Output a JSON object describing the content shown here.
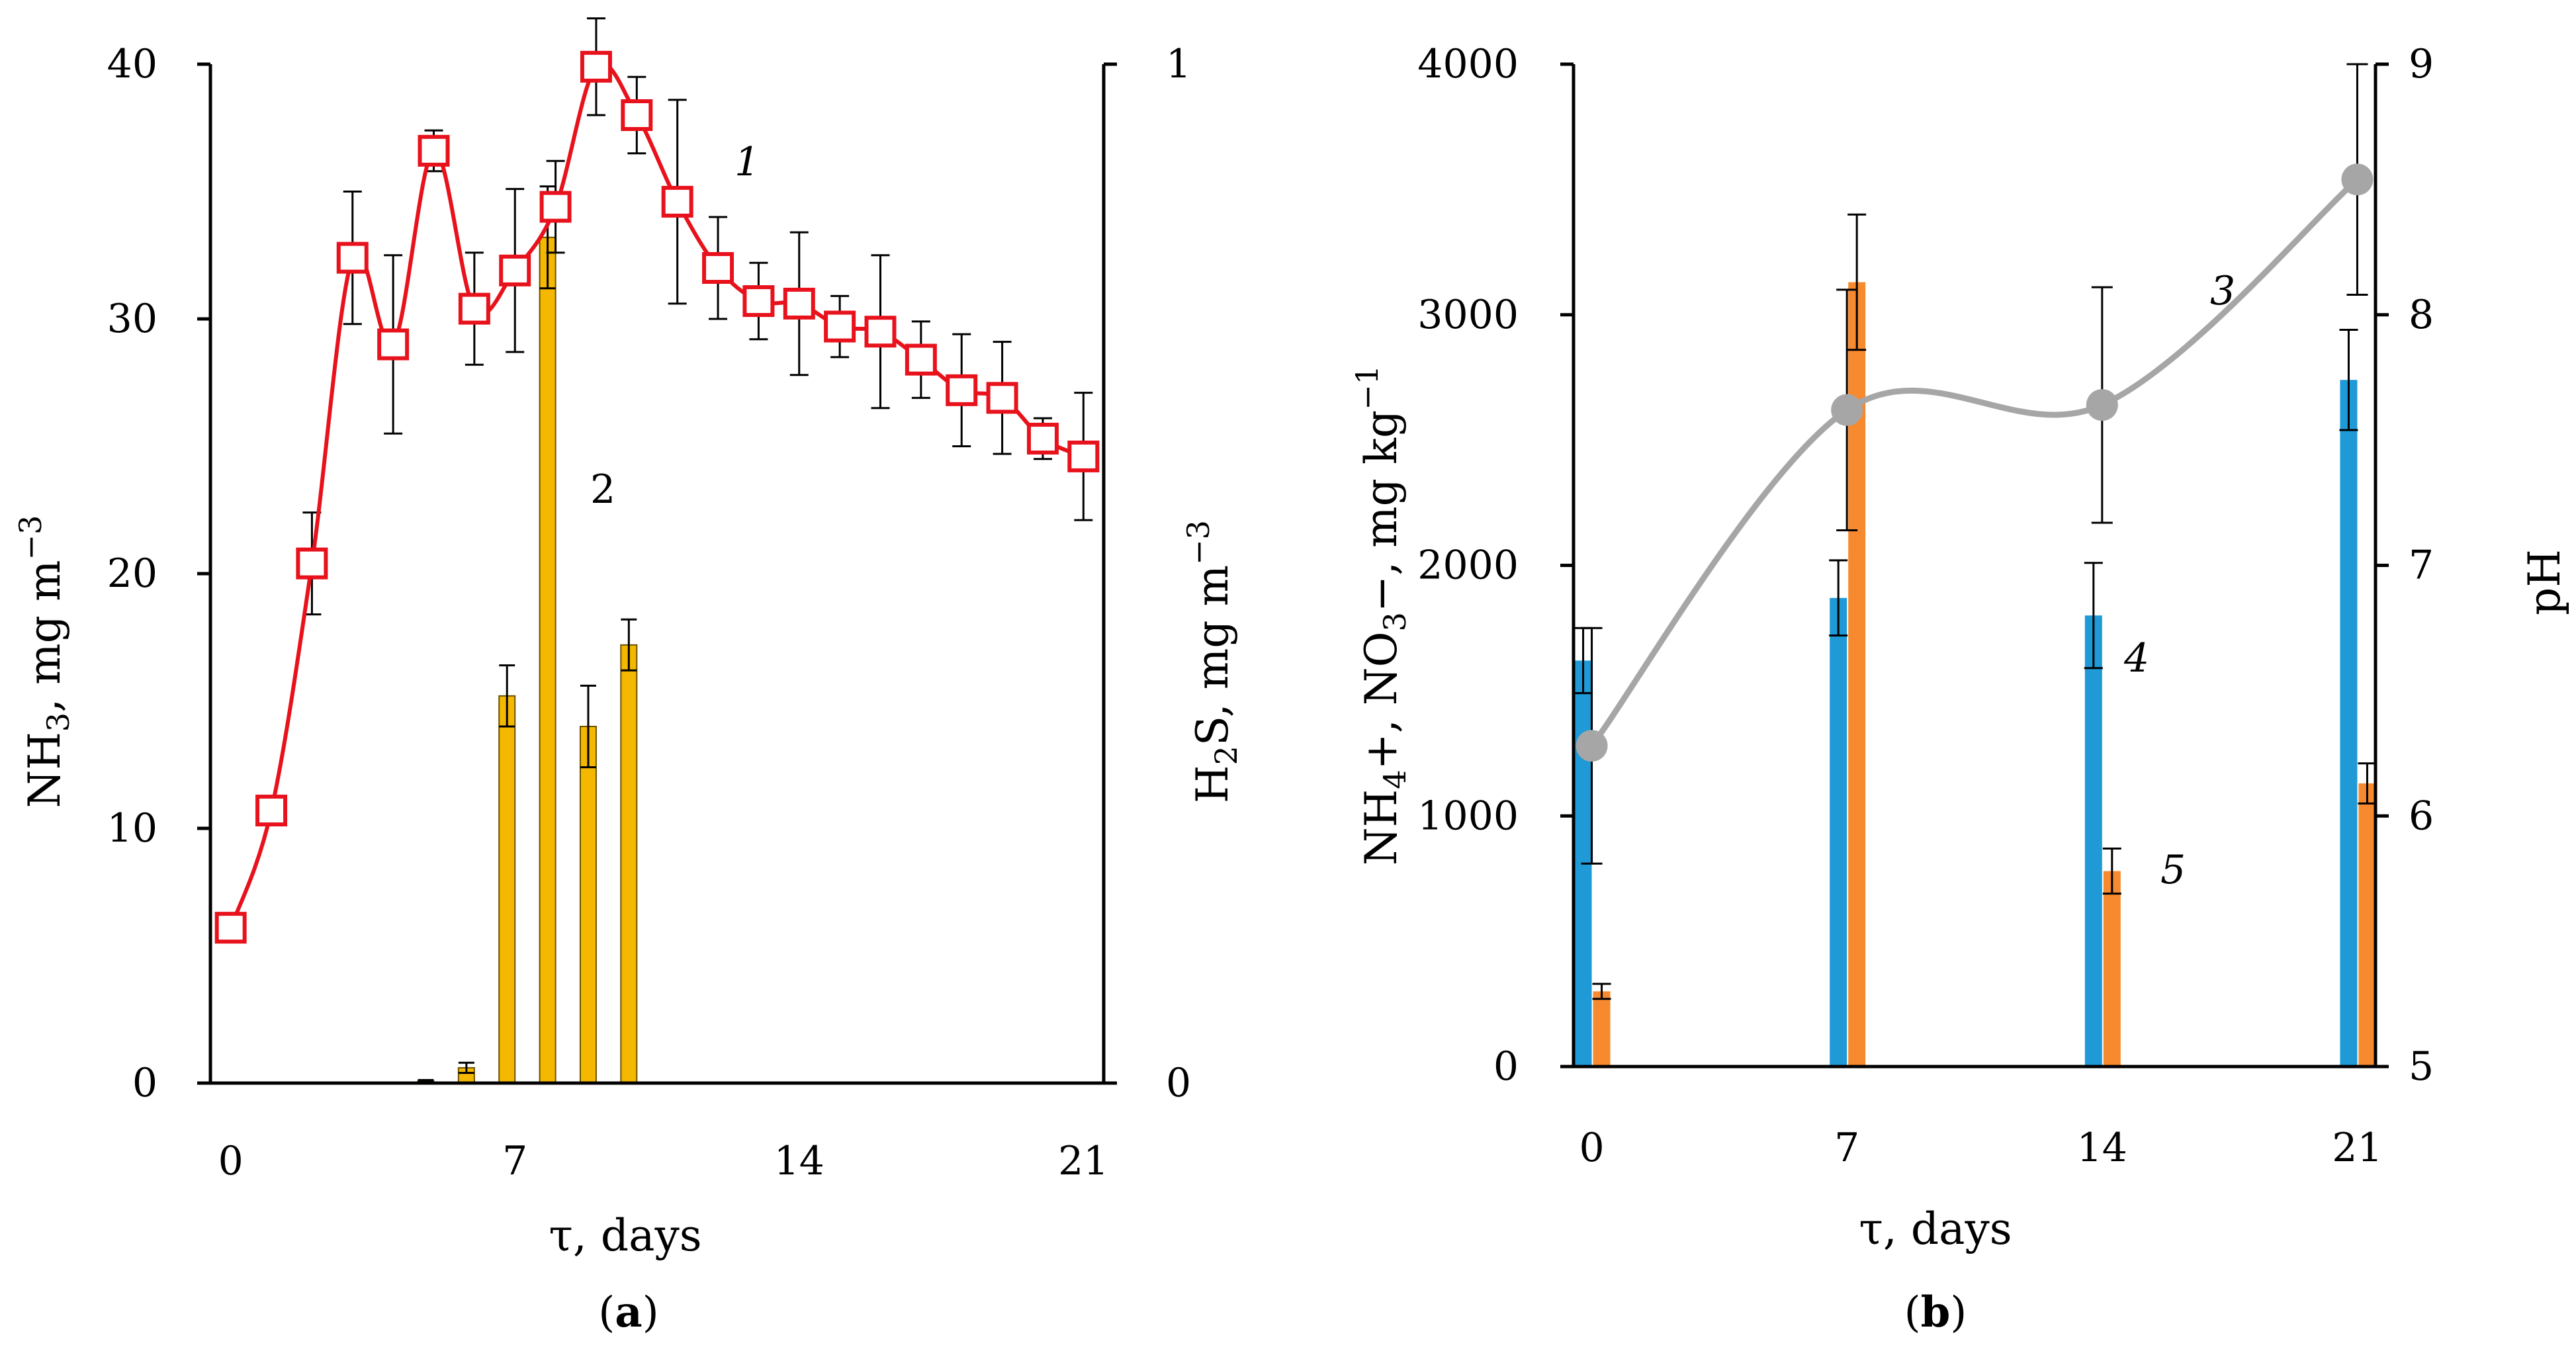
{
  "chart_data": [
    {
      "type": "line",
      "panel": "a",
      "panel_label": "a",
      "xlabel": "τ, days",
      "ylabel_left": {
        "base": "NH",
        "sub": "3",
        "rest": ", mg m",
        "sup": "−3"
      },
      "ylabel_right": {
        "base": "H",
        "sub": "2",
        "rest": "S, mg m",
        "sup": "−3"
      },
      "xlim": [
        -0.5,
        21.5
      ],
      "ylim_left": [
        0,
        40
      ],
      "ylim_right": [
        0,
        1
      ],
      "x_ticks": [
        0,
        7,
        14,
        21
      ],
      "y_ticks_left": [
        0,
        10,
        20,
        30,
        40
      ],
      "y_ticks_right": [
        0,
        1
      ],
      "series": [
        {
          "name": "1",
          "label": "1",
          "kind": "line",
          "axis": "left",
          "color": "#e8121c",
          "marker": "square",
          "x": [
            0,
            1,
            2,
            3,
            4,
            5,
            6,
            7,
            8,
            9,
            10,
            11,
            12,
            13,
            14,
            15,
            16,
            17,
            18,
            19,
            20,
            21
          ],
          "y": [
            6.1,
            10.7,
            20.4,
            32.4,
            29.0,
            36.6,
            30.4,
            31.9,
            34.4,
            39.9,
            38.0,
            34.6,
            32.0,
            30.7,
            30.6,
            29.7,
            29.5,
            28.4,
            27.2,
            26.9,
            25.3,
            24.6
          ],
          "err": [
            0.4,
            0.4,
            2.0,
            2.6,
            3.5,
            0.8,
            2.2,
            3.2,
            1.8,
            1.9,
            1.5,
            4.0,
            2.0,
            1.5,
            2.8,
            1.2,
            3.0,
            1.5,
            2.2,
            2.2,
            0.8,
            2.5
          ]
        },
        {
          "name": "2",
          "label": "2",
          "kind": "bar",
          "axis": "right",
          "color": "#f5b800",
          "x": [
            5,
            6,
            7,
            8,
            9,
            10
          ],
          "y": [
            0.002,
            0.015,
            0.38,
            0.83,
            0.35,
            0.43
          ],
          "err": [
            0.001,
            0.005,
            0.03,
            0.05,
            0.04,
            0.025
          ]
        }
      ]
    },
    {
      "type": "bar",
      "panel": "b",
      "panel_label": "b",
      "xlabel": "τ, days",
      "ylabel_left": {
        "a": "NH",
        "a_sub": "4",
        "b": "+, NO",
        "b_sub": "3",
        "c": "−, mg kg",
        "c_sup": "−1"
      },
      "ylabel_right": "pH",
      "xlim": [
        -0.5,
        21.5
      ],
      "ylim_left": [
        0,
        4000
      ],
      "ylim_right": [
        5,
        9
      ],
      "x_ticks": [
        0,
        7,
        14,
        21
      ],
      "y_ticks_left": [
        0,
        1000,
        2000,
        3000,
        4000
      ],
      "y_ticks_right": [
        5,
        6,
        7,
        8,
        9
      ],
      "series": [
        {
          "name": "3",
          "label": "3",
          "kind": "line",
          "axis": "right",
          "color": "#a6a6a6",
          "x": [
            0,
            7,
            14,
            21
          ],
          "y": [
            6.28,
            7.62,
            7.64,
            8.54
          ],
          "err": [
            0.47,
            0.48,
            0.47,
            0.46
          ]
        },
        {
          "name": "4",
          "label": "4",
          "kind": "bar",
          "axis": "left",
          "color": "#1f9ad6",
          "x": [
            0,
            7,
            14,
            21
          ],
          "y": [
            1620,
            1870,
            1800,
            2740
          ],
          "err": [
            130,
            150,
            210,
            200
          ]
        },
        {
          "name": "5",
          "label": "5",
          "kind": "bar",
          "axis": "left",
          "color": "#f78a2e",
          "x": [
            0,
            7,
            14,
            21
          ],
          "y": [
            300,
            3130,
            780,
            1130
          ],
          "err": [
            30,
            270,
            90,
            80
          ]
        }
      ]
    }
  ]
}
